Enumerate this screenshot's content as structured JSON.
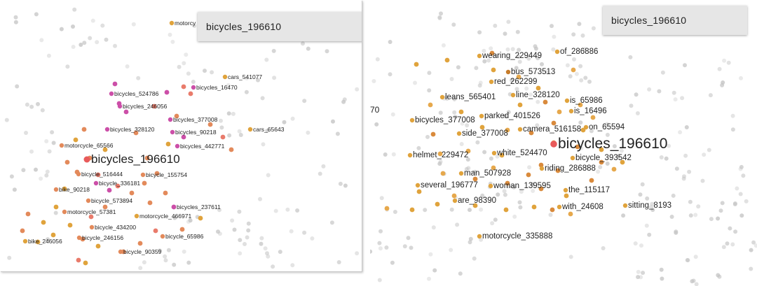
{
  "left": {
    "search_query": "bicycles_196610",
    "focus_label": "bicycles_196610",
    "labels": [
      "motorcy",
      "cars_541077",
      "bicycles_524786",
      "bicycles_16470",
      "bicycles_246056",
      "bicycles_377008",
      "cars_65643",
      "bicycles_328120",
      "bicycles_90218",
      "motorcycle_65566",
      "bicycles_442771",
      "bicycle_516444",
      "bicycle_155754",
      "bicycle_336181",
      "bike_90218",
      "bicycle_573894",
      "bicycles_237611",
      "motorcycle_57381",
      "motorcycle_466971",
      "bicycle_434200",
      "bike_246056",
      "bicycle_246156",
      "bicycle_65986",
      "bicycle_90359"
    ]
  },
  "right": {
    "search_query": "bicycles_196610",
    "focus_label": "bicycles_196610",
    "edge_fragment": "70",
    "labels": [
      "wearing_229449",
      "of_286886",
      "bus_573513",
      "red_262299",
      "leans_565401",
      "line_328120",
      "is_65986",
      "is_16496",
      "bicycles_377008",
      "parked_401526",
      "camera_516158",
      "on_65594",
      "side_377008",
      "helmet_229472",
      "white_524470",
      "bicycle_393542",
      "riding_286888",
      "man_507928",
      "several_196777",
      "woman_139595",
      "the_115117",
      "are_98390",
      "with_24608",
      "sitting_8193",
      "motorcycle_335888"
    ]
  }
}
